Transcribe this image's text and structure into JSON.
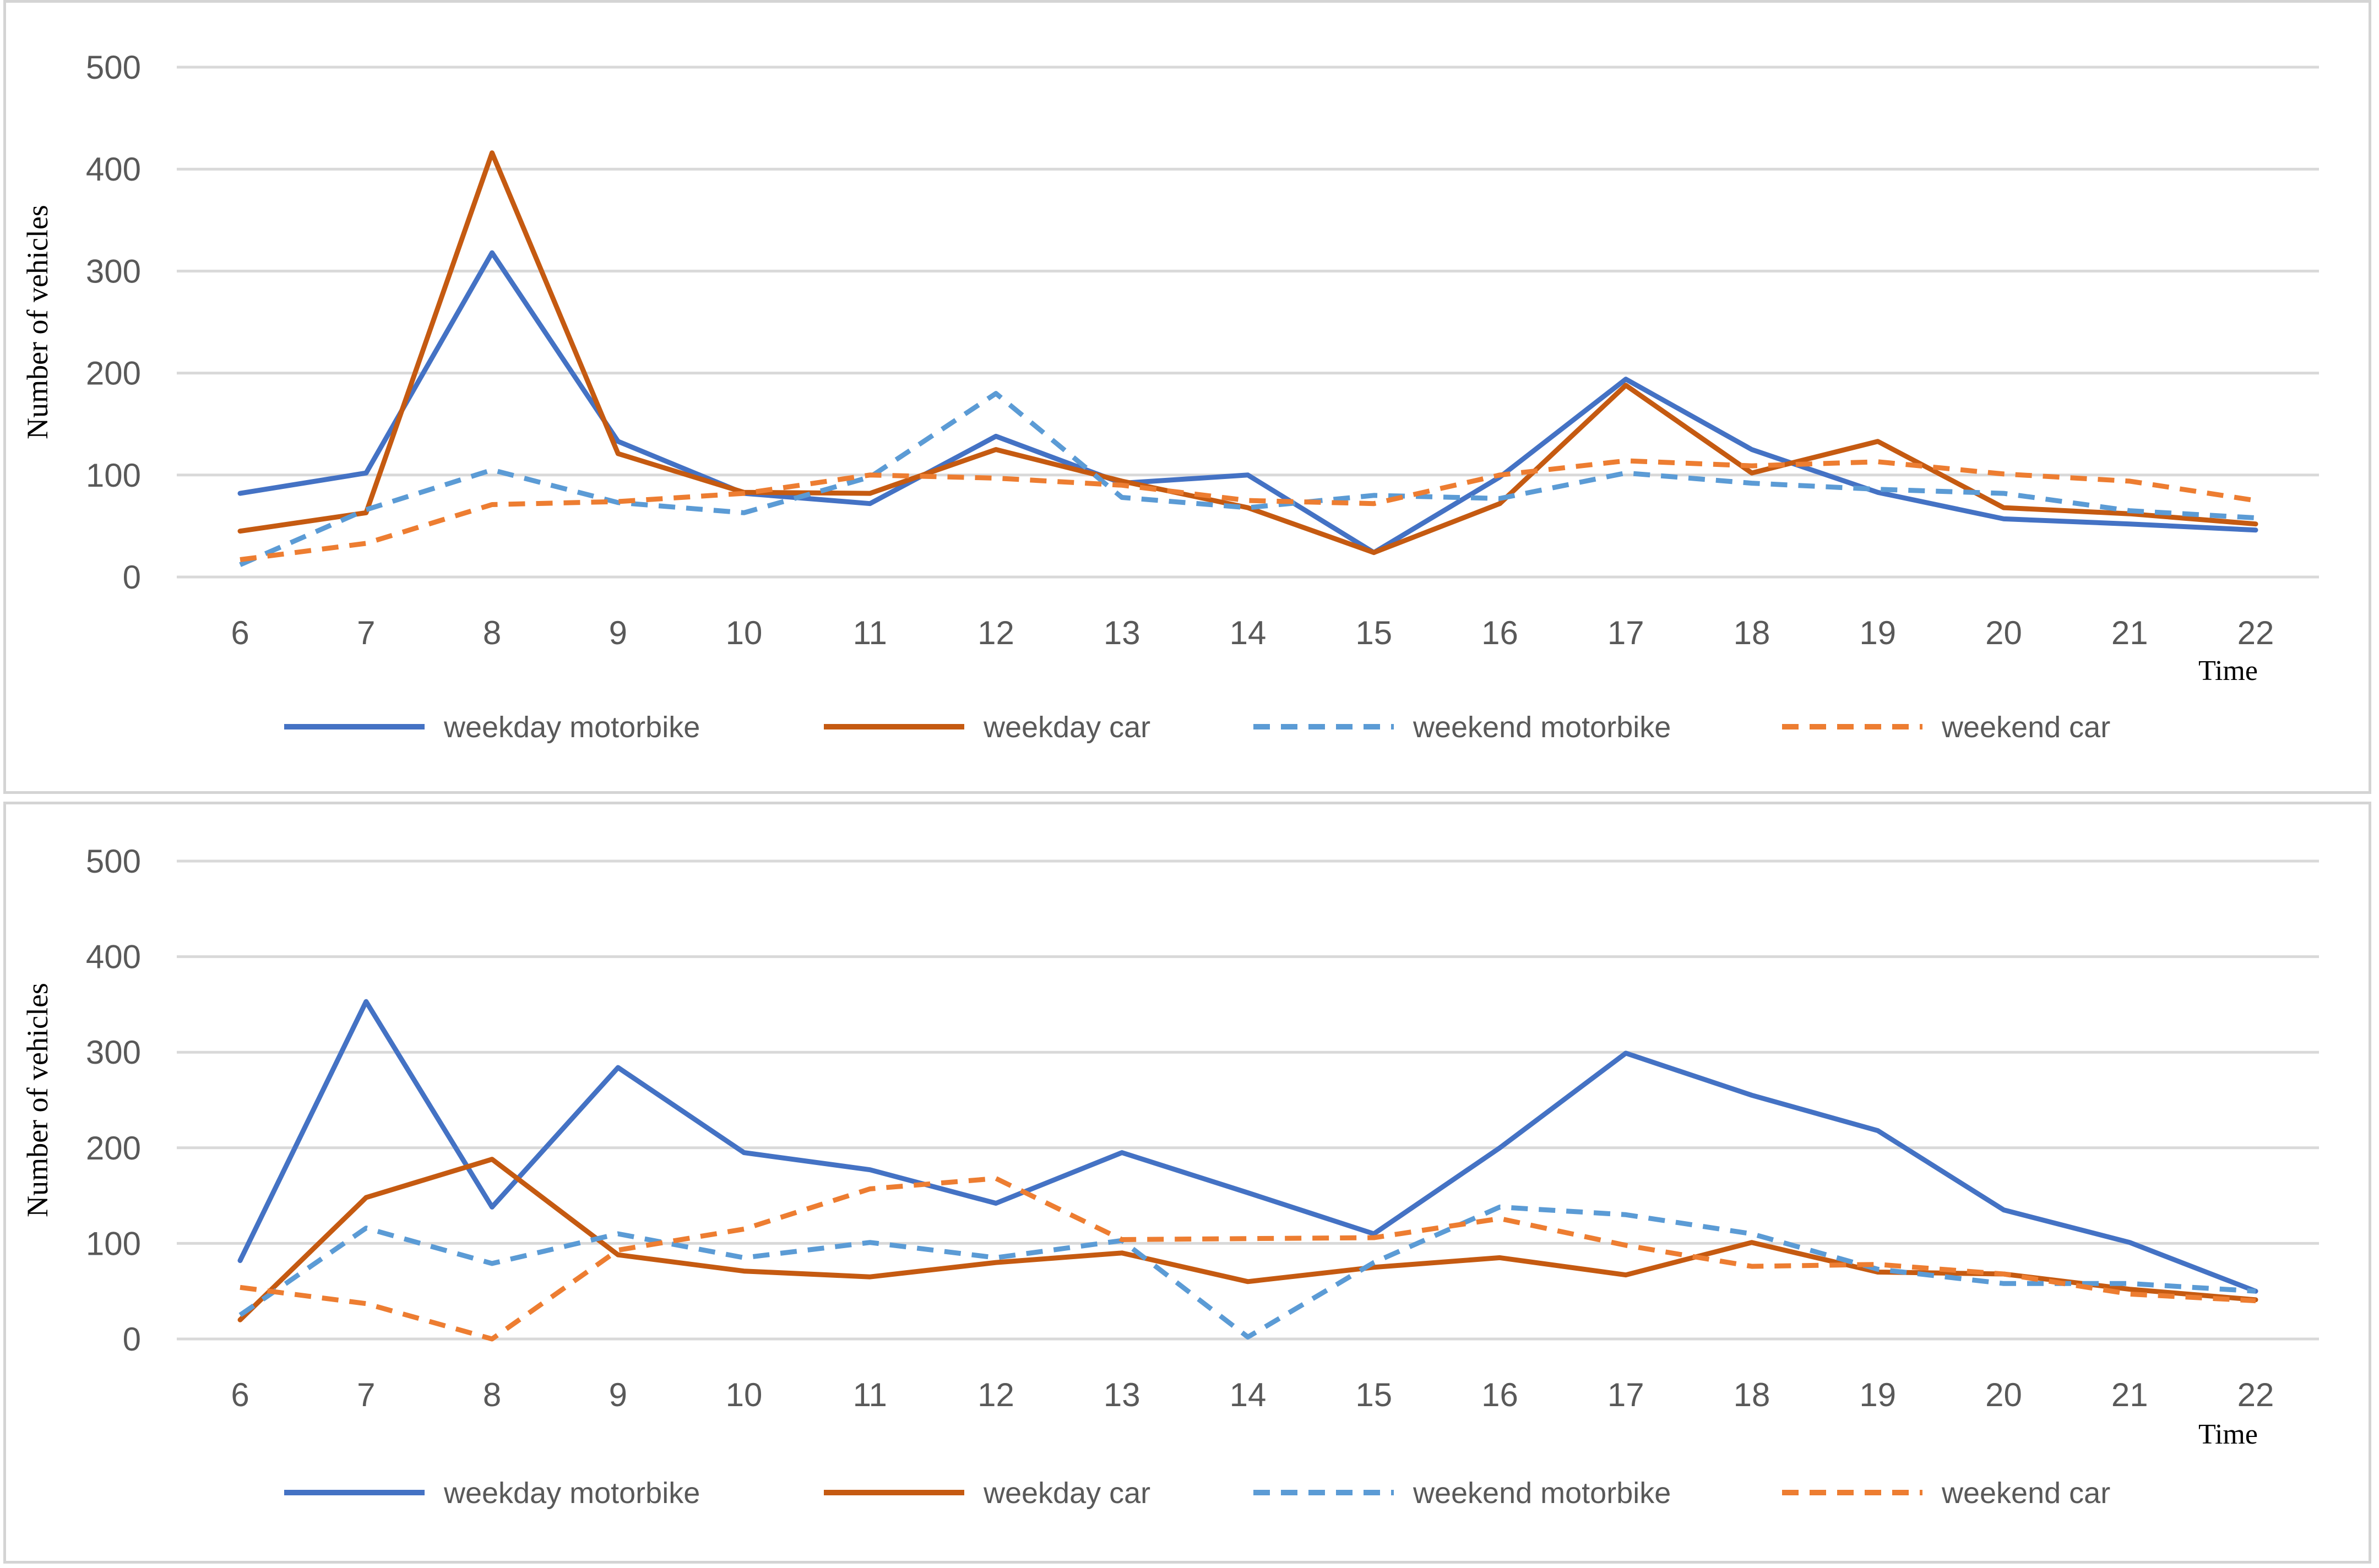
{
  "chart_data": [
    {
      "type": "line",
      "title": "",
      "xlabel": "Time",
      "ylabel": "Number of vehicles",
      "x": [
        6,
        7,
        8,
        9,
        10,
        11,
        12,
        13,
        14,
        15,
        16,
        17,
        18,
        19,
        20,
        21,
        22
      ],
      "ylim": [
        0,
        500
      ],
      "yticks": [
        0,
        100,
        200,
        300,
        400,
        500
      ],
      "grid": true,
      "legend": "bottom",
      "series": [
        {
          "name": "weekday motorbike",
          "color": "#4472C4",
          "dash": "solid",
          "values": [
            82,
            102,
            318,
            133,
            82,
            72,
            138,
            92,
            100,
            24,
            98,
            194,
            125,
            83,
            57,
            52,
            46
          ]
        },
        {
          "name": "weekday car",
          "color": "#C55A11",
          "dash": "solid",
          "values": [
            45,
            63,
            416,
            121,
            83,
            82,
            125,
            94,
            68,
            24,
            72,
            188,
            102,
            133,
            68,
            62,
            52
          ]
        },
        {
          "name": "weekend motorbike",
          "color": "#5B9BD5",
          "dash": "dashed",
          "values": [
            12,
            66,
            105,
            73,
            63,
            98,
            180,
            78,
            68,
            80,
            77,
            102,
            92,
            86,
            82,
            65,
            58
          ]
        },
        {
          "name": "weekend car",
          "color": "#ED7D31",
          "dash": "dashed",
          "values": [
            17,
            33,
            71,
            74,
            82,
            100,
            97,
            90,
            75,
            72,
            100,
            114,
            109,
            113,
            101,
            94,
            75
          ]
        }
      ]
    },
    {
      "type": "line",
      "title": "",
      "xlabel": "Time",
      "ylabel": "Number of vehicles",
      "x": [
        6,
        7,
        8,
        9,
        10,
        11,
        12,
        13,
        14,
        15,
        16,
        17,
        18,
        19,
        20,
        21,
        22
      ],
      "ylim": [
        0,
        500
      ],
      "yticks": [
        0,
        100,
        200,
        300,
        400,
        500
      ],
      "grid": true,
      "legend": "bottom",
      "series": [
        {
          "name": "weekday motorbike",
          "color": "#4472C4",
          "dash": "solid",
          "values": [
            82,
            353,
            138,
            284,
            195,
            177,
            142,
            195,
            153,
            110,
            200,
            299,
            255,
            218,
            135,
            101,
            50
          ]
        },
        {
          "name": "weekday car",
          "color": "#C55A11",
          "dash": "solid",
          "values": [
            20,
            148,
            188,
            88,
            71,
            65,
            80,
            90,
            60,
            75,
            85,
            67,
            101,
            70,
            68,
            52,
            41
          ]
        },
        {
          "name": "weekend motorbike",
          "color": "#5B9BD5",
          "dash": "dashed",
          "values": [
            25,
            116,
            79,
            110,
            85,
            101,
            85,
            103,
            2,
            80,
            138,
            130,
            110,
            73,
            58,
            58,
            50
          ]
        },
        {
          "name": "weekend car",
          "color": "#ED7D31",
          "dash": "dashed",
          "values": [
            54,
            37,
            0,
            93,
            115,
            157,
            168,
            104,
            105,
            106,
            126,
            98,
            76,
            78,
            68,
            47,
            40
          ]
        }
      ]
    }
  ]
}
